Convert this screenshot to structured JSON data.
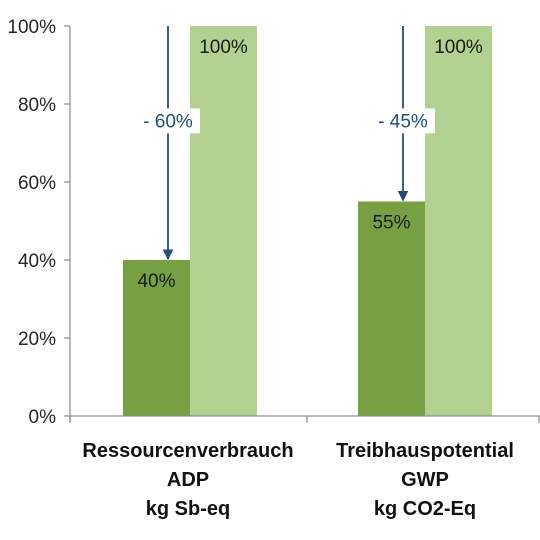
{
  "chart_data": {
    "type": "bar",
    "title": "",
    "xlabel": "",
    "ylabel": "",
    "ylim": [
      0,
      100
    ],
    "y_ticks": [
      "0%",
      "20%",
      "40%",
      "60%",
      "80%",
      "100%"
    ],
    "grid": false,
    "categories": [
      [
        "Ressourcenverbrauch",
        "ADP",
        "kg Sb-eq"
      ],
      [
        "Treibhauspotential",
        "GWP",
        "kg CO2-Eq"
      ]
    ],
    "series": [
      {
        "values": [
          40,
          55
        ],
        "labels": [
          "40%",
          "55%"
        ],
        "color": "#77a043"
      },
      {
        "values": [
          100,
          100
        ],
        "labels": [
          "100%",
          "100%"
        ],
        "color": "#b2d08f"
      }
    ],
    "annotations": [
      {
        "category_index": 0,
        "text": "- 60%",
        "from": 100,
        "to": 40
      },
      {
        "category_index": 1,
        "text": "- 45%",
        "from": 100,
        "to": 55
      }
    ],
    "arrow_color": "#1f4e79"
  }
}
